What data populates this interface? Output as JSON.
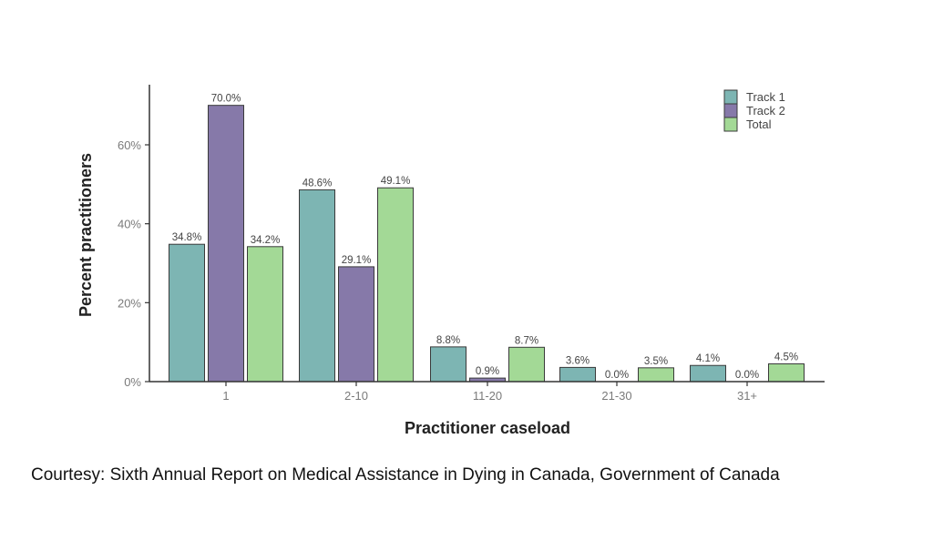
{
  "chart_data": {
    "type": "bar",
    "title": "",
    "xlabel": "Practitioner caseload",
    "ylabel": "Percent practitioners",
    "categories": [
      "1",
      "2-10",
      "11-20",
      "21-30",
      "31+"
    ],
    "series": [
      {
        "name": "Track 1",
        "color": "#7db5b3",
        "values": [
          34.8,
          48.6,
          8.8,
          3.6,
          4.1
        ],
        "labels": [
          "34.8%",
          "48.6%",
          "8.8%",
          "3.6%",
          "4.1%"
        ]
      },
      {
        "name": "Track 2",
        "color": "#8679a9",
        "values": [
          70.0,
          29.1,
          0.9,
          0.0,
          0.0
        ],
        "labels": [
          "70.0%",
          "29.1%",
          "0.9%",
          "0.0%",
          "0.0%"
        ]
      },
      {
        "name": "Total",
        "color": "#a3d996",
        "values": [
          34.2,
          49.1,
          8.7,
          3.5,
          4.5
        ],
        "labels": [
          "34.2%",
          "49.1%",
          "8.7%",
          "3.5%",
          "4.5%"
        ]
      }
    ],
    "yticks": [
      0,
      20,
      40,
      60
    ],
    "ytick_labels": [
      "0%",
      "20%",
      "40%",
      "60%"
    ],
    "ylim": [
      0,
      75
    ],
    "grid": false,
    "legend_position": "top-right"
  },
  "caption": {
    "text": "Courtesy:  Sixth Annual Report on Medical Assistance in Dying in Canada, Government of Canada"
  }
}
